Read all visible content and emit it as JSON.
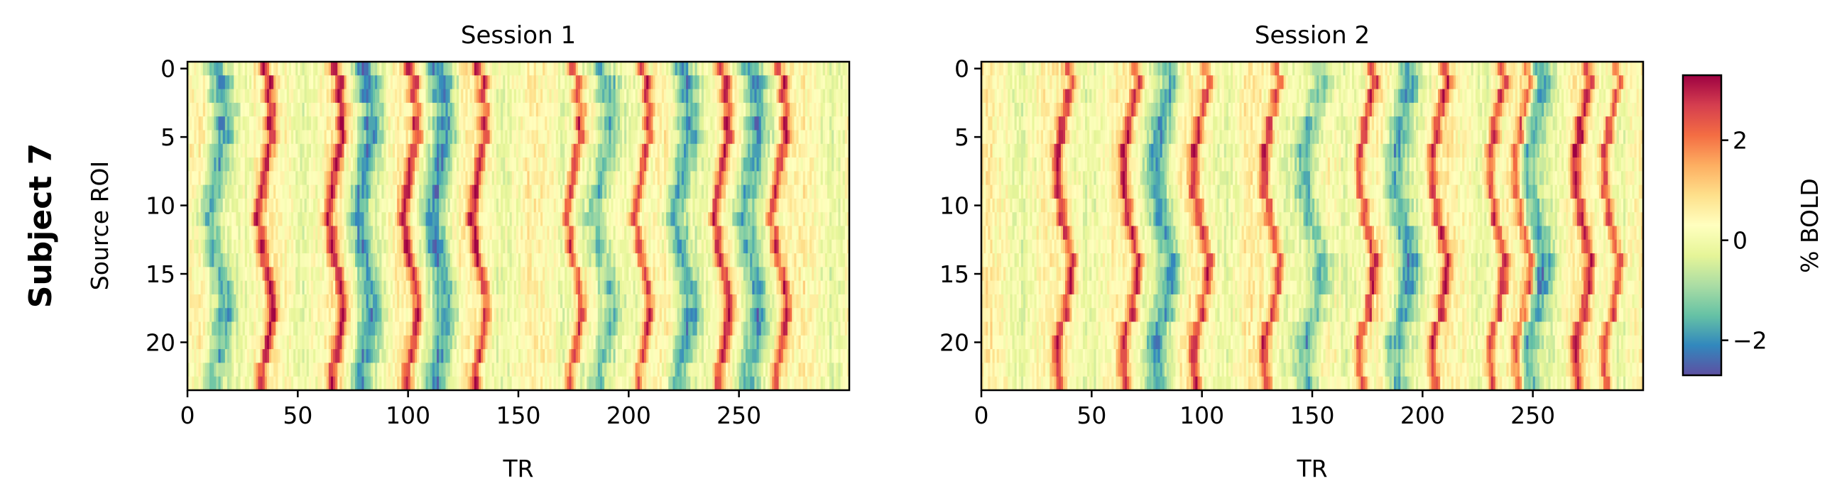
{
  "figure": {
    "row_title": "Subject 7"
  },
  "chart_data": [
    {
      "type": "heatmap",
      "title": "Session 1",
      "xlabel": "TR",
      "ylabel": "Source ROI",
      "n_cols": 300,
      "n_rows": 24,
      "xlim": [
        0,
        300
      ],
      "ylim": [
        23.5,
        -0.5
      ],
      "xticks": [
        0,
        50,
        100,
        150,
        200,
        250
      ],
      "yticks": [
        0,
        5,
        10,
        15,
        20
      ],
      "colormap": "Spectral_r",
      "peak_events_TR": [
        35,
        67,
        101,
        132,
        175,
        206,
        242,
        268
      ],
      "trough_events_TR": [
        13,
        80,
        114,
        188,
        224,
        255
      ]
    },
    {
      "type": "heatmap",
      "title": "Session 2",
      "xlabel": "TR",
      "ylabel": "",
      "n_cols": 300,
      "n_rows": 24,
      "xlim": [
        0,
        300
      ],
      "ylim": [
        23.5,
        -0.5
      ],
      "xticks": [
        0,
        50,
        100,
        150,
        200,
        250
      ],
      "yticks": [
        0,
        5,
        10,
        15,
        20
      ],
      "colormap": "Spectral_r",
      "peak_events_TR": [
        37,
        67,
        99,
        131,
        174,
        207,
        233,
        245,
        272,
        285
      ],
      "trough_events_TR": [
        82,
        150,
        190,
        250
      ]
    }
  ],
  "colorbar": {
    "label": "% BOLD",
    "vmin": -2.7,
    "vmax": 3.3,
    "ticks": [
      -2,
      0,
      2
    ],
    "tick_labels": [
      "−2",
      "0",
      "2"
    ]
  }
}
